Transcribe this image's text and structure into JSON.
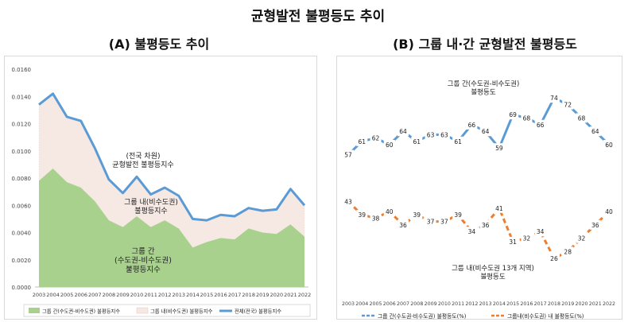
{
  "title": "균형발전 불평등도 추이",
  "panel_a_title": "(A) 불평등도 추이",
  "panel_b_title": "(B) 그룹 내·간 균형발전 불평등도",
  "chart_data": [
    {
      "type": "area",
      "years": [
        "2003",
        "2004",
        "2005",
        "2006",
        "2007",
        "2008",
        "2009",
        "2010",
        "2011",
        "2012",
        "2013",
        "2014",
        "2015",
        "2016",
        "2017",
        "2018",
        "2019",
        "2020",
        "2021",
        "2022"
      ],
      "ylim": [
        0,
        0.016
      ],
      "yticks": [
        "0.0000",
        "0.0020",
        "0.0040",
        "0.0060",
        "0.0080",
        "0.0100",
        "0.0120",
        "0.0140",
        "0.0160"
      ],
      "series": [
        {
          "name": "그룹 간(수도권-비수도권) 불평등지수",
          "color": "#a9d18e",
          "values": [
            0.0078,
            0.0087,
            0.0077,
            0.0073,
            0.0063,
            0.0049,
            0.0044,
            0.0052,
            0.0044,
            0.0049,
            0.0043,
            0.0029,
            0.0033,
            0.0036,
            0.0035,
            0.0043,
            0.004,
            0.0039,
            0.0046,
            0.0037
          ]
        },
        {
          "name": "그룹 내(비수도권) 불평등지수",
          "color": "#f6e8e3",
          "values": [
            0.0056,
            0.0055,
            0.0048,
            0.0049,
            0.0039,
            0.003,
            0.0025,
            0.0029,
            0.0024,
            0.0024,
            0.0024,
            0.0021,
            0.0016,
            0.0017,
            0.0017,
            0.0015,
            0.0016,
            0.0018,
            0.0026,
            0.0023
          ]
        },
        {
          "name": "전체(전국) 불평등지수",
          "color": "#5b9bd5",
          "values": [
            0.0134,
            0.0142,
            0.0125,
            0.0122,
            0.0102,
            0.0079,
            0.0069,
            0.0081,
            0.0068,
            0.0073,
            0.0067,
            0.005,
            0.0049,
            0.0053,
            0.0052,
            0.0058,
            0.0056,
            0.0057,
            0.0072,
            0.006
          ]
        }
      ],
      "annotations": [
        {
          "text": "(전국 차원)\n균형발전 불평등지수",
          "series": 2
        },
        {
          "text": "그룹 내(비수도권)\n불평등지수",
          "series": 1
        },
        {
          "text": "그룹 간\n(수도권-비수도권)\n불평등지수",
          "series": 0
        }
      ]
    },
    {
      "type": "line",
      "years": [
        "2003",
        "2004",
        "2005",
        "2006",
        "2007",
        "2008",
        "2009",
        "2010",
        "2011",
        "2012",
        "2013",
        "2014",
        "2015",
        "2016",
        "2017",
        "2018",
        "2019",
        "2020",
        "2021",
        "2022"
      ],
      "ylim": [
        20,
        80
      ],
      "series": [
        {
          "name": "그룹 간(수도권-비수도권) 불평등도(%)",
          "color": "#5b9bd5",
          "dash": false,
          "values": [
            57,
            61,
            62,
            60,
            64,
            61,
            63,
            63,
            61,
            66,
            64,
            59,
            69,
            68,
            66,
            74,
            72,
            68,
            64,
            60
          ]
        },
        {
          "name": "그룹내(비수도권) 내 불평등도(%)",
          "color": "#ed7d31",
          "dash": true,
          "values": [
            43,
            39,
            38,
            40,
            36,
            39,
            37,
            37,
            39,
            34,
            36,
            41,
            31,
            32,
            34,
            26,
            28,
            32,
            36,
            40
          ]
        }
      ],
      "annotations": [
        {
          "text": "그룹 간(수도권-비수도권)\n불평등도",
          "series": 0
        },
        {
          "text": "그룹 내(비수도권 13개 지역)\n불평등도",
          "series": 1
        }
      ]
    }
  ]
}
